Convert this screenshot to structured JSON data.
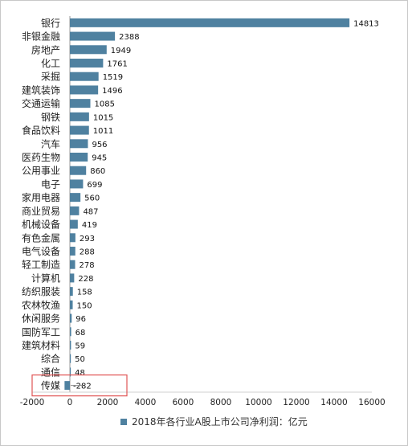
{
  "chart_data": {
    "type": "bar",
    "orientation": "horizontal",
    "categories": [
      "银行",
      "非银金融",
      "房地产",
      "化工",
      "采掘",
      "建筑装饰",
      "交通运输",
      "钢铁",
      "食品饮料",
      "汽车",
      "医药生物",
      "公用事业",
      "电子",
      "家用电器",
      "商业贸易",
      "机械设备",
      "有色金属",
      "电气设备",
      "轻工制造",
      "计算机",
      "纺织服装",
      "农林牧渔",
      "休闲服务",
      "国防军工",
      "建筑材料",
      "综合",
      "通信",
      "传媒"
    ],
    "series": [
      {
        "name": "2018年各行业A股上市公司净利润：亿元",
        "values": [
          14813,
          2388,
          1949,
          1761,
          1519,
          1496,
          1085,
          1015,
          1011,
          956,
          945,
          860,
          699,
          560,
          487,
          419,
          293,
          288,
          278,
          228,
          158,
          150,
          96,
          68,
          59,
          50,
          48,
          -282
        ]
      }
    ],
    "data_labels": [
      "14813",
      "2388",
      "1949",
      "1761",
      "1519",
      "1496",
      "1085",
      "1015",
      "1011",
      "956",
      "945",
      "860",
      "699",
      "560",
      "487",
      "419",
      "293",
      "288",
      "278",
      "228",
      "158",
      "150",
      "96",
      "68",
      "59",
      "50",
      "48",
      "-282"
    ],
    "x_ticks": [
      "-2000",
      "0",
      "2000",
      "4000",
      "6000",
      "8000",
      "10000",
      "12000",
      "14000",
      "16000"
    ],
    "xlim": [
      -2000,
      16000
    ],
    "grid": false,
    "legend_position": "bottom",
    "highlight_category": "传媒",
    "colors": {
      "bar": "#4f81a0",
      "highlight_box": "#e05555",
      "axis": "#999999"
    }
  }
}
